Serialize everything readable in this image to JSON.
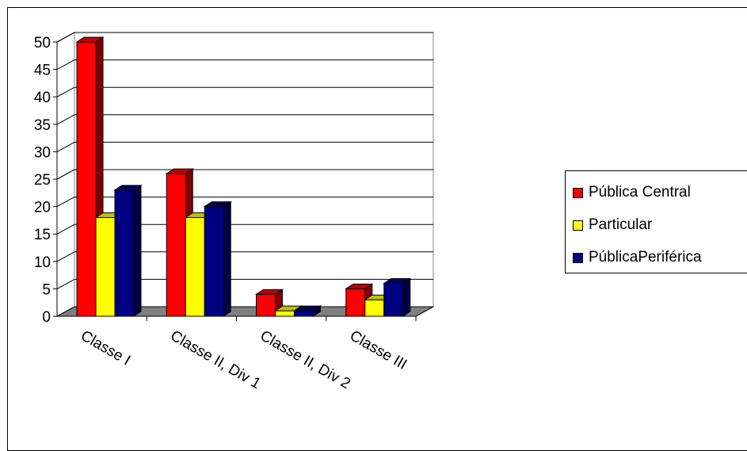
{
  "chart_data": {
    "type": "bar",
    "categories": [
      "Classe I",
      "Classe II, Div 1",
      "Classe II, Div 2",
      "Classe III"
    ],
    "series": [
      {
        "name": "Pública Central",
        "values": [
          50,
          26,
          4,
          5
        ],
        "color": "#ff0000"
      },
      {
        "name": "Particular",
        "values": [
          18,
          18,
          1,
          3
        ],
        "color": "#ffff00"
      },
      {
        "name": "PúblicaPeriférica",
        "values": [
          23,
          20,
          1,
          6
        ],
        "color": "#000080"
      }
    ],
    "y_ticks": [
      "0",
      "5",
      "10",
      "15",
      "20",
      "25",
      "30",
      "35",
      "40",
      "45",
      "50"
    ],
    "ylim": [
      0,
      50
    ],
    "grid": true,
    "legend_position": "right",
    "style": "3d-clustered-column"
  }
}
